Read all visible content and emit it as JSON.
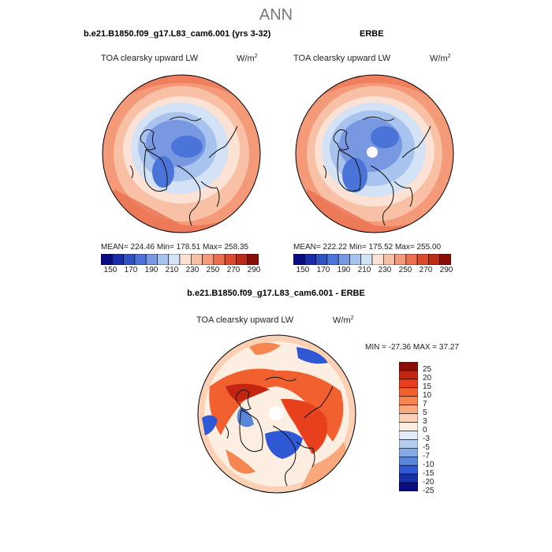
{
  "figure": {
    "title": "ANN"
  },
  "panels": [
    {
      "title": "b.e21.B1850.f09_g17.L83_cam6.001 (yrs 3-32)",
      "variable": "TOA clearsky upward LW",
      "unit_base": "W/m",
      "unit_exp": "2",
      "stats": "MEAN= 224.46   Min= 178.51   Max= 258.35"
    },
    {
      "title": "ERBE",
      "variable": "TOA clearsky upward LW",
      "unit_base": "W/m",
      "unit_exp": "2",
      "stats": "MEAN= 222.22   Min= 175.52   Max= 255.00"
    }
  ],
  "abs_colorbar": {
    "ticks": [
      "150",
      "170",
      "190",
      "210",
      "230",
      "250",
      "270",
      "290"
    ],
    "colors": [
      "#0a0a82",
      "#1a2ca8",
      "#2e52c4",
      "#4a74d8",
      "#7898e2",
      "#a8c4ee",
      "#d4e2f6",
      "#fbe2d4",
      "#f8c0a4",
      "#f49a78",
      "#ea7050",
      "#dc4a2c",
      "#bc2a18",
      "#8a0e08"
    ]
  },
  "diff_panel": {
    "title": "b.e21.B1850.f09_g17.L83_cam6.001 - ERBE",
    "variable": "TOA clearsky upward LW",
    "unit_base": "W/m",
    "unit_exp": "2",
    "stats": "MIN = -27.36  MAX =  37.27"
  },
  "diff_colorbar": {
    "labels": [
      "25",
      "20",
      "15",
      "10",
      "7",
      "5",
      "3",
      "0",
      "-3",
      "-5",
      "-7",
      "-10",
      "-15",
      "-20",
      "-25"
    ],
    "colors": [
      "#8a0e08",
      "#c42412",
      "#e8401c",
      "#f26030",
      "#f68650",
      "#f8a87a",
      "#fbd0b4",
      "#fdeee2",
      "#e2ecf8",
      "#b4cef0",
      "#86aae4",
      "#5a86d8",
      "#2e58d4",
      "#1830a8",
      "#0a0a82"
    ]
  }
}
